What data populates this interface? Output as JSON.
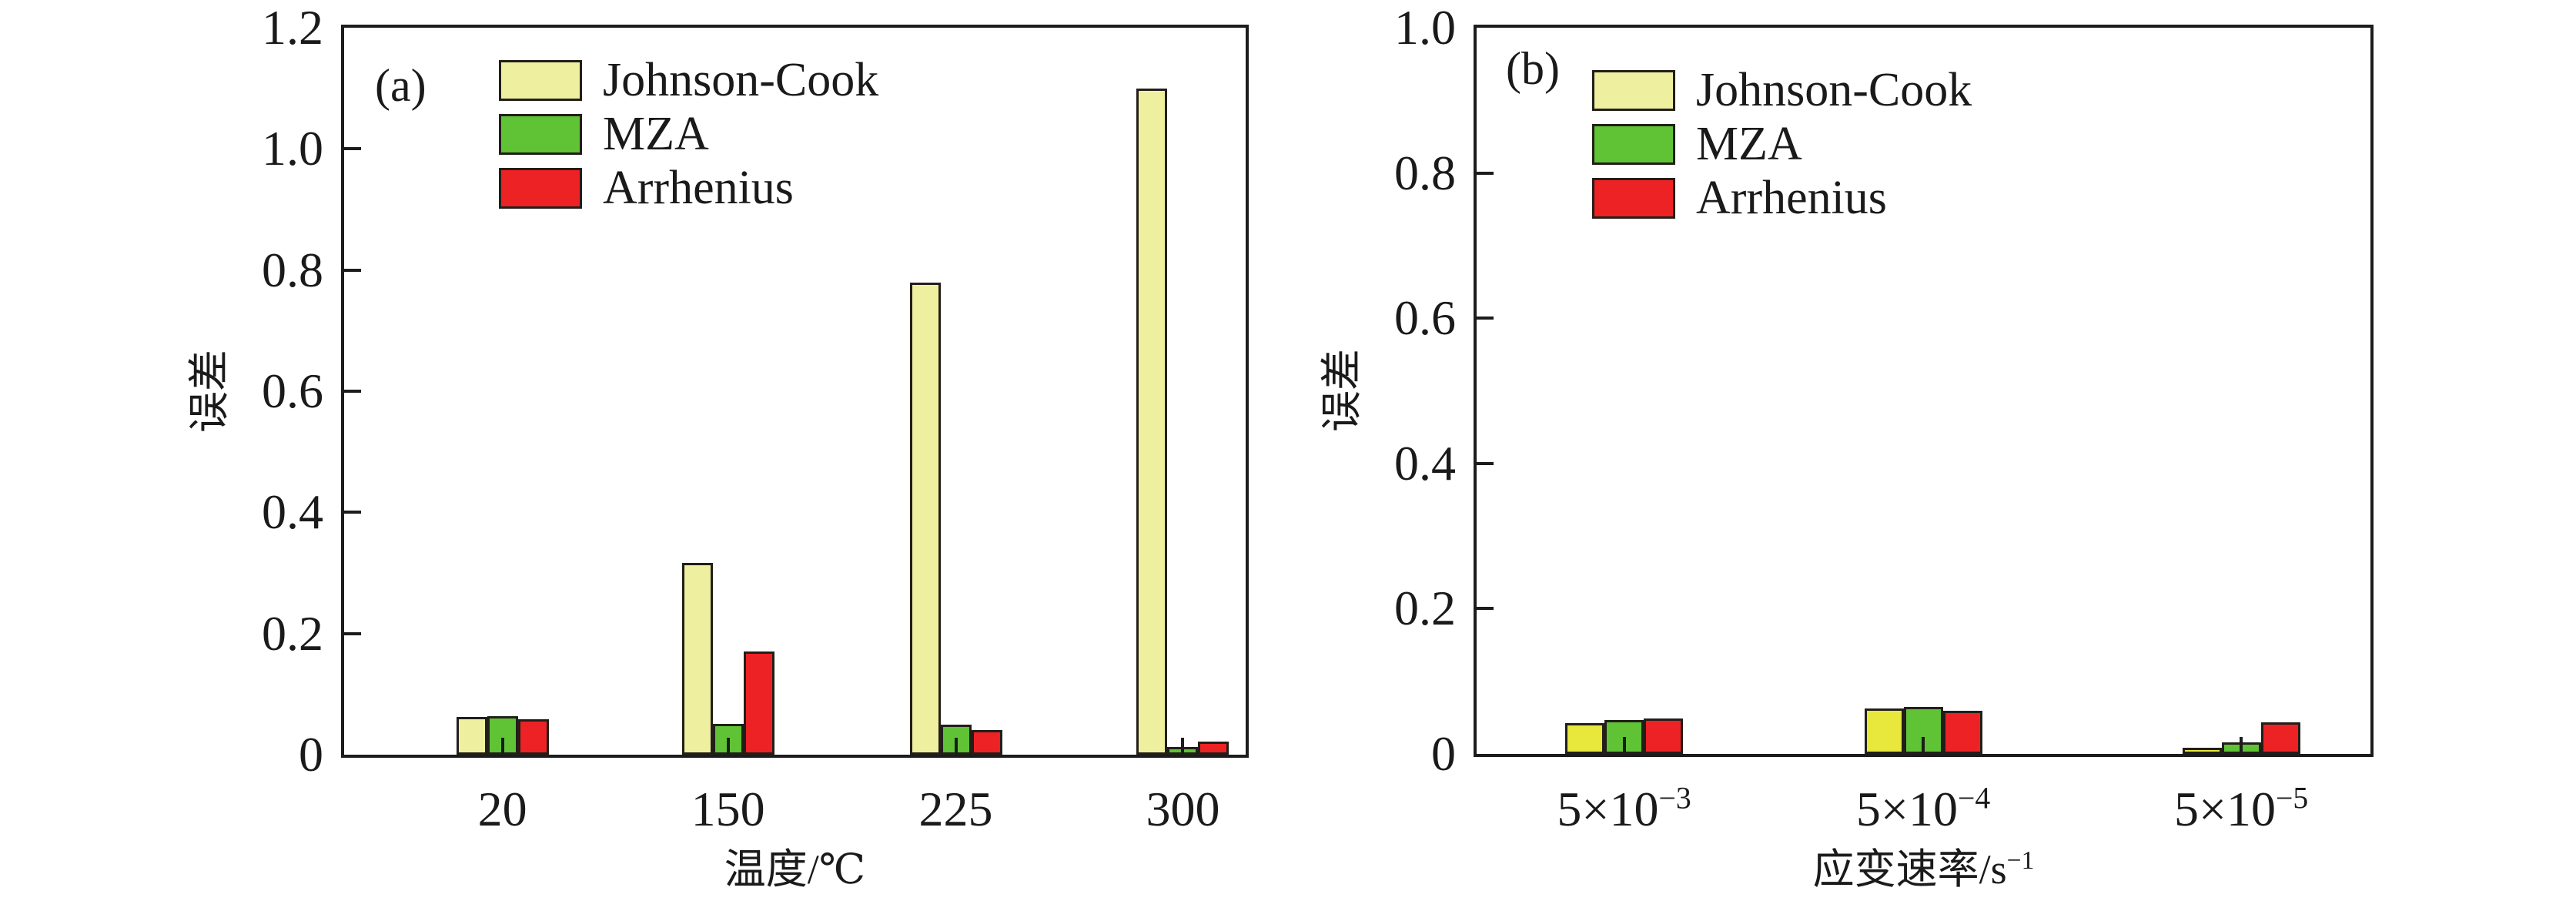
{
  "figure": {
    "background": "#ffffff",
    "text_color": "#1a1a1a",
    "axis_color": "#1c1c1c"
  },
  "chart_data": [
    {
      "type": "bar",
      "panel_label": "(a)",
      "title": "",
      "xlabel": {
        "text": "温度/℃",
        "sup": ""
      },
      "ylabel": "误差",
      "ylim": [
        0,
        1.2
      ],
      "ytick_step": 0.2,
      "ytick_labels": [
        "0",
        "0.2",
        "0.4",
        "0.6",
        "0.8",
        "1.0",
        "1.2"
      ],
      "grid": "off",
      "legend_position": "upper-left-inside",
      "categories": [
        {
          "base": "20",
          "sup": ""
        },
        {
          "base": "150",
          "sup": ""
        },
        {
          "base": "225",
          "sup": ""
        },
        {
          "base": "300",
          "sup": ""
        }
      ],
      "series": [
        {
          "name": "Johnson-Cook",
          "color": "#eef0a0",
          "legend_color": "#eef0a0",
          "values": [
            0.062,
            0.316,
            0.779,
            1.1
          ]
        },
        {
          "name": "MZA",
          "color": "#5fc335",
          "legend_color": "#5fc335",
          "values": [
            0.064,
            0.051,
            0.049,
            0.013
          ]
        },
        {
          "name": "Arrhenius",
          "color": "#ed2224",
          "legend_color": "#ed2224",
          "values": [
            0.059,
            0.17,
            0.041,
            0.022
          ]
        }
      ]
    },
    {
      "type": "bar",
      "panel_label": "(b)",
      "title": "",
      "xlabel": {
        "text": "应变速率/s",
        "sup": "−1"
      },
      "ylabel": "误差",
      "ylim": [
        0,
        1.0
      ],
      "ytick_step": 0.2,
      "ytick_labels": [
        "0",
        "0.2",
        "0.4",
        "0.6",
        "0.8",
        "1.0"
      ],
      "grid": "off",
      "legend_position": "upper-left-inside",
      "categories": [
        {
          "base": "5×10",
          "sup": "−3"
        },
        {
          "base": "5×10",
          "sup": "−4"
        },
        {
          "base": "5×10",
          "sup": "−5"
        }
      ],
      "series": [
        {
          "name": "Johnson-Cook",
          "color": "#e7e73c",
          "legend_color": "#eef0a0",
          "values": [
            0.042,
            0.063,
            0.008
          ]
        },
        {
          "name": "MZA",
          "color": "#5fc335",
          "legend_color": "#5fc335",
          "values": [
            0.047,
            0.065,
            0.016
          ]
        },
        {
          "name": "Arrhenius",
          "color": "#ed2224",
          "legend_color": "#ed2224",
          "values": [
            0.049,
            0.059,
            0.044
          ]
        }
      ]
    }
  ]
}
